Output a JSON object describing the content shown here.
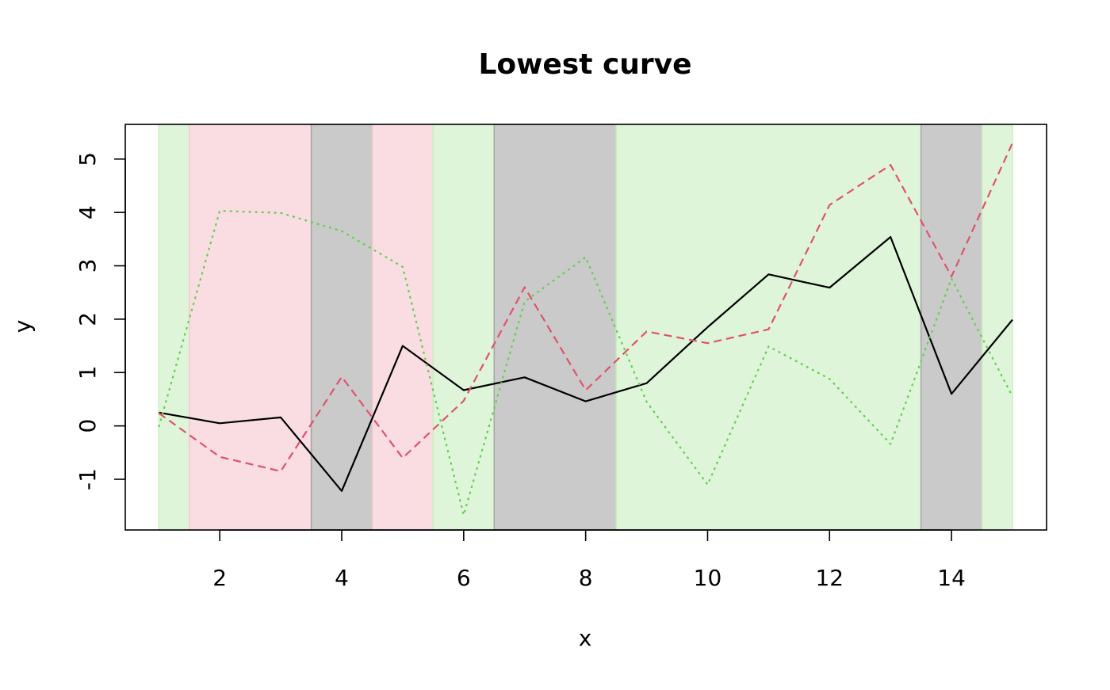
{
  "chart_data": {
    "type": "line",
    "title": "Lowest curve",
    "xlabel": "x",
    "ylabel": "y",
    "xlim": [
      1,
      15
    ],
    "ylim": [
      -1.95,
      5.65
    ],
    "x_ticks": [
      2,
      4,
      6,
      8,
      10,
      12,
      14
    ],
    "y_ticks": [
      -1,
      0,
      1,
      2,
      3,
      4,
      5
    ],
    "grid": false,
    "legend": "none",
    "x": [
      1,
      2,
      3,
      4,
      5,
      6,
      7,
      8,
      9,
      10,
      11,
      12,
      13,
      14,
      15
    ],
    "series": [
      {
        "color": "#000000",
        "line_style": "solid",
        "values": [
          0.25,
          0.05,
          0.16,
          -1.22,
          1.5,
          0.67,
          0.91,
          0.46,
          0.8,
          1.85,
          2.84,
          2.59,
          3.54,
          0.6,
          1.99
        ]
      },
      {
        "color": "#DF536B",
        "line_style": "dashed",
        "values": [
          0.24,
          -0.58,
          -0.85,
          0.92,
          -0.6,
          0.47,
          2.6,
          0.67,
          1.77,
          1.55,
          1.81,
          4.14,
          4.89,
          2.8,
          5.3
        ]
      },
      {
        "color": "#61D04F",
        "line_style": "dotted",
        "values": [
          -0.02,
          4.03,
          3.99,
          3.65,
          2.98,
          -1.67,
          2.33,
          3.16,
          0.45,
          -1.1,
          1.49,
          0.88,
          -0.34,
          2.76,
          0.55
        ]
      }
    ],
    "background_bands": [
      {
        "from": 1,
        "to": 1.5,
        "lowest_series": "dotted",
        "color": "#C9EFC1"
      },
      {
        "from": 1.5,
        "to": 3.5,
        "lowest_series": "dashed",
        "color": "#F6C7CF"
      },
      {
        "from": 3.5,
        "to": 4.5,
        "lowest_series": "solid",
        "color": "#A6A6A6"
      },
      {
        "from": 4.5,
        "to": 5.5,
        "lowest_series": "dashed",
        "color": "#F6C7CF"
      },
      {
        "from": 5.5,
        "to": 6.5,
        "lowest_series": "dotted",
        "color": "#C9EFC1"
      },
      {
        "from": 6.5,
        "to": 8.5,
        "lowest_series": "solid",
        "color": "#A6A6A6"
      },
      {
        "from": 8.5,
        "to": 13.5,
        "lowest_series": "dotted",
        "color": "#C9EFC1"
      },
      {
        "from": 13.5,
        "to": 14.5,
        "lowest_series": "solid",
        "color": "#A6A6A6"
      },
      {
        "from": 14.5,
        "to": 15,
        "lowest_series": "dotted",
        "color": "#C9EFC1"
      }
    ]
  }
}
